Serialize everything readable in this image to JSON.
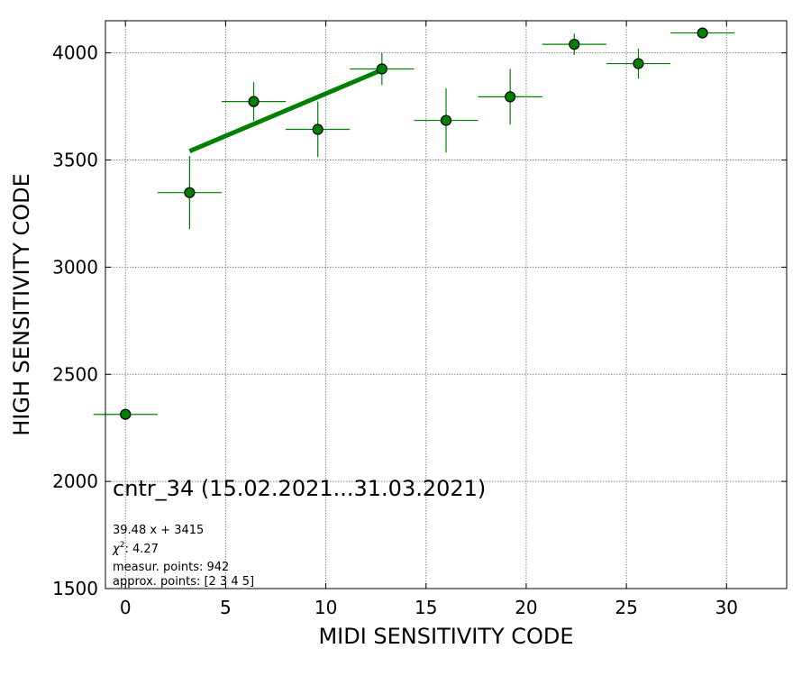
{
  "chart_data": {
    "type": "scatter",
    "xlabel": "MIDI SENSITIVITY CODE",
    "ylabel": "HIGH SENSITIVITY CODE",
    "xlim": [
      -1,
      33
    ],
    "ylim": [
      1500,
      4150
    ],
    "xticks": [
      0,
      5,
      10,
      15,
      20,
      25,
      30
    ],
    "yticks": [
      1500,
      2000,
      2500,
      3000,
      3500,
      4000
    ],
    "grid": true,
    "colors": {
      "points": "#008000",
      "fit": "#008000",
      "edge": "#000000"
    },
    "points": [
      {
        "x": 0,
        "y": 2313,
        "xerr": 1.6,
        "yerr": 0
      },
      {
        "x": 3.2,
        "y": 3348,
        "xerr": 1.6,
        "yerr": 170
      },
      {
        "x": 6.4,
        "y": 3773,
        "xerr": 1.6,
        "yerr": 90
      },
      {
        "x": 9.6,
        "y": 3643,
        "xerr": 1.6,
        "yerr": 130
      },
      {
        "x": 12.8,
        "y": 3925,
        "xerr": 1.6,
        "yerr": 75
      },
      {
        "x": 16.0,
        "y": 3685,
        "xerr": 1.6,
        "yerr": 150
      },
      {
        "x": 19.2,
        "y": 3795,
        "xerr": 1.6,
        "yerr": 130
      },
      {
        "x": 22.4,
        "y": 4040,
        "xerr": 1.6,
        "yerr": 50
      },
      {
        "x": 25.6,
        "y": 3950,
        "xerr": 1.6,
        "yerr": 70
      },
      {
        "x": 28.8,
        "y": 4093,
        "xerr": 1.6,
        "yerr": 0
      }
    ],
    "fit": {
      "slope": 39.48,
      "intercept": 3415,
      "x_range": [
        3.2,
        12.8
      ]
    },
    "annotation_title": "cntr_34 (15.02.2021...31.03.2021)",
    "annotations": [
      "39.48 x + 3415",
      "measur. points: 942",
      "approx. points: [2 3 4 5]"
    ],
    "chi2_label": "χ",
    "chi2_sup": "2",
    "chi2_value": ": 4.27"
  }
}
